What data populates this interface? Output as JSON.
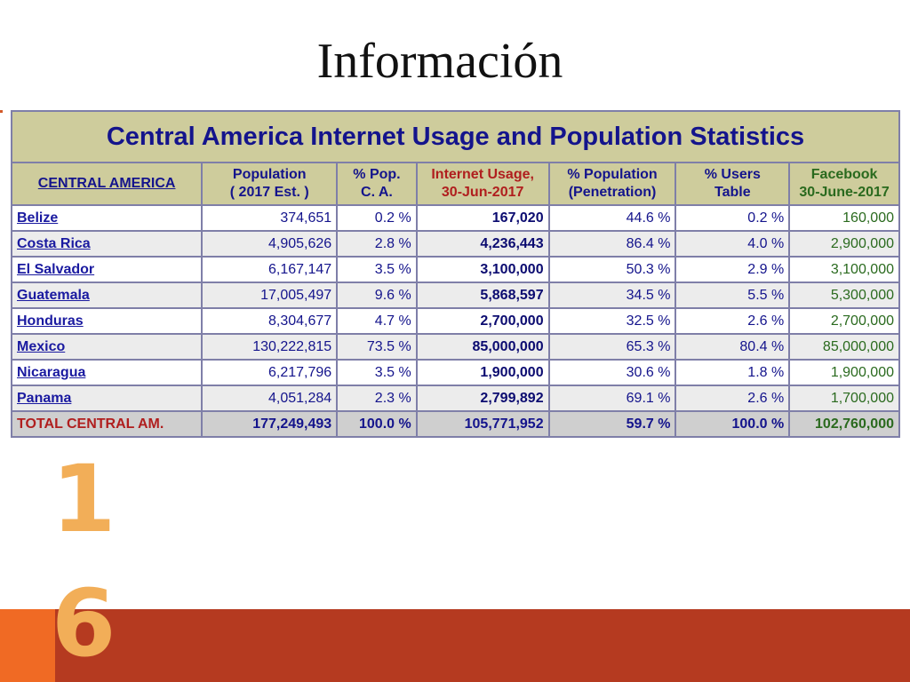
{
  "slide": {
    "title": "Información",
    "page_number_digits": [
      "1",
      "6"
    ]
  },
  "table": {
    "title": "Central America Internet Usage and Population Statistics",
    "headers": {
      "country": "CENTRAL AMERICA",
      "population_line1": "Population",
      "population_line2": "( 2017 Est. )",
      "pct_pop_line1": "% Pop.",
      "pct_pop_line2": "C. A.",
      "internet_line1": "Internet Usage,",
      "internet_line2": "30-Jun-2017",
      "penetration_line1": "% Population",
      "penetration_line2": "(Penetration)",
      "users_line1": "% Users",
      "users_line2": "Table",
      "facebook_line1": "Facebook",
      "facebook_line2": "30-June-2017"
    },
    "rows": [
      {
        "country": "Belize",
        "population": "374,651",
        "pct_pop": "0.2 %",
        "internet": "167,020",
        "penetration": "44.6 %",
        "users": "0.2 %",
        "facebook": "160,000"
      },
      {
        "country": "Costa Rica",
        "population": "4,905,626",
        "pct_pop": "2.8 %",
        "internet": "4,236,443",
        "penetration": "86.4 %",
        "users": "4.0 %",
        "facebook": "2,900,000"
      },
      {
        "country": "El Salvador",
        "population": "6,167,147",
        "pct_pop": "3.5 %",
        "internet": "3,100,000",
        "penetration": "50.3 %",
        "users": "2.9 %",
        "facebook": "3,100,000"
      },
      {
        "country": "Guatemala",
        "population": "17,005,497",
        "pct_pop": "9.6 %",
        "internet": "5,868,597",
        "penetration": "34.5 %",
        "users": "5.5 %",
        "facebook": "5,300,000"
      },
      {
        "country": "Honduras",
        "population": "8,304,677",
        "pct_pop": "4.7 %",
        "internet": "2,700,000",
        "penetration": "32.5 %",
        "users": "2.6 %",
        "facebook": "2,700,000"
      },
      {
        "country": "Mexico",
        "population": "130,222,815",
        "pct_pop": "73.5 %",
        "internet": "85,000,000",
        "penetration": "65.3 %",
        "users": "80.4 %",
        "facebook": "85,000,000"
      },
      {
        "country": "Nicaragua",
        "population": "6,217,796",
        "pct_pop": "3.5 %",
        "internet": "1,900,000",
        "penetration": "30.6 %",
        "users": "1.8 %",
        "facebook": "1,900,000"
      },
      {
        "country": "Panama",
        "population": "4,051,284",
        "pct_pop": "2.3 %",
        "internet": "2,799,892",
        "penetration": "69.1 %",
        "users": "2.6 %",
        "facebook": "1,700,000"
      }
    ],
    "total": {
      "country": "TOTAL CENTRAL AM.",
      "population": "177,249,493",
      "pct_pop": "100.0 %",
      "internet": "105,771,952",
      "penetration": "59.7 %",
      "users": "100.0 %",
      "facebook": "102,760,000"
    }
  },
  "colors": {
    "header_bg": "#cecc9c",
    "text_blue": "#14148c",
    "text_red": "#b01e1e",
    "text_green": "#2a6a1e",
    "footer_bar": "#b53a20",
    "footer_accent": "#f06a24",
    "page_digit": "#f2ae58"
  }
}
